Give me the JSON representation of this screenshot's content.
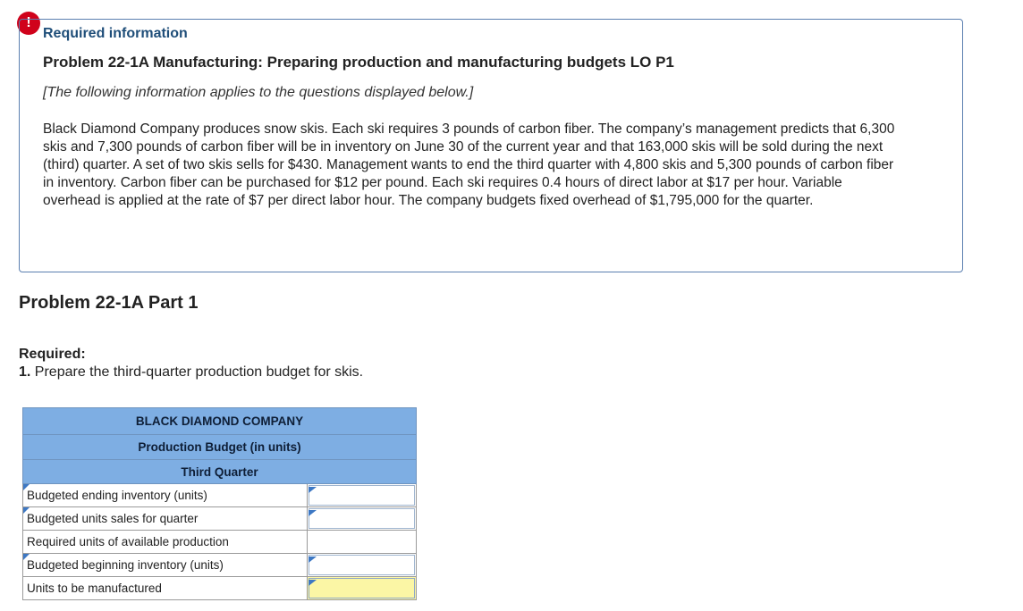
{
  "alert": {
    "symbol": "!"
  },
  "info": {
    "heading": "Required information",
    "title": "Problem 22-1A Manufacturing: Preparing production and manufacturing budgets LO P1",
    "note": "[The following information applies to the questions displayed below.]",
    "body": "Black Diamond Company produces snow skis. Each ski requires 3 pounds of carbon fiber. The company’s management predicts that 6,300 skis and 7,300 pounds of carbon fiber will be in inventory on June 30 of the current year and that 163,000 skis will be sold during the next (third) quarter. A set of two skis sells for $430. Management wants to end the third quarter with 4,800 skis and 5,300 pounds of carbon fiber in inventory. Carbon fiber can be purchased for $12 per pound. Each ski requires 0.4 hours of direct labor at $17 per hour. Variable overhead is applied at the rate of $7 per direct labor hour. The company budgets fixed overhead of $1,795,000 for the quarter."
  },
  "part": {
    "title": "Problem 22-1A Part 1"
  },
  "required": {
    "label": "Required:",
    "number": "1.",
    "text": "Prepare the third-quarter production budget for skis."
  },
  "budget": {
    "company": "BLACK DIAMOND COMPANY",
    "title": "Production Budget (in units)",
    "period": "Third Quarter",
    "rows": [
      {
        "label": "Budgeted ending inventory (units)",
        "value": ""
      },
      {
        "label": "Budgeted units sales for quarter",
        "value": ""
      },
      {
        "label": "Required units of available production",
        "value": ""
      },
      {
        "label": "Budgeted beginning inventory (units)",
        "value": ""
      },
      {
        "label": "Units to be manufactured",
        "value": ""
      }
    ]
  },
  "colors": {
    "header_fill": "#7eaee3",
    "final_cell_fill": "#fbf6a5",
    "alert": "#d0021b",
    "heading": "#1f4e79"
  }
}
